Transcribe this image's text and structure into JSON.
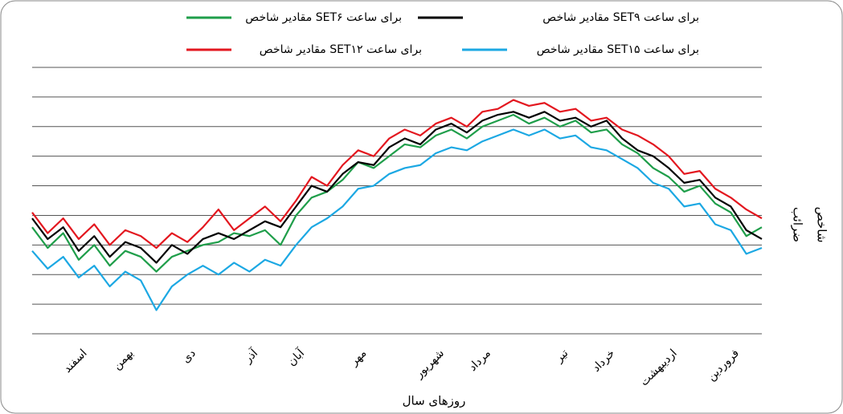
{
  "chart_data": {
    "type": "line",
    "x_label": "روزهای سال",
    "y_label": [
      "ضرائب",
      "شاخص"
    ],
    "categories": [
      null,
      null,
      null,
      "اسفند",
      null,
      null,
      "بهمن",
      null,
      null,
      null,
      "دی",
      null,
      null,
      null,
      "آذر",
      null,
      null,
      "آبان",
      null,
      null,
      null,
      "مهر",
      null,
      null,
      null,
      null,
      "شهریور",
      null,
      null,
      "مرداد",
      null,
      null,
      null,
      null,
      "تیر",
      null,
      null,
      "خرداد",
      null,
      null,
      null,
      "اردیبهشت",
      null,
      null,
      null,
      "فروردین",
      null,
      null
    ],
    "series": [
      {
        "name": "مقادیر شاخص SETبرای ساعت ۶",
        "color": "#1f9e4a",
        "values": [
          3.6,
          2.9,
          3.4,
          2.5,
          3.0,
          2.3,
          2.8,
          2.6,
          2.1,
          2.6,
          2.8,
          3.0,
          3.1,
          3.4,
          3.3,
          3.5,
          3.0,
          4.0,
          4.6,
          4.8,
          5.2,
          5.8,
          5.6,
          6.0,
          6.4,
          6.3,
          6.7,
          6.9,
          6.6,
          7.0,
          7.2,
          7.4,
          7.1,
          7.3,
          7.0,
          7.2,
          6.8,
          6.9,
          6.4,
          6.1,
          5.6,
          5.3,
          4.8,
          5.0,
          4.4,
          4.1,
          3.3,
          3.6
        ]
      },
      {
        "name": "مقادیر شاخص SETبرای ساعت ۹",
        "color": "#000000",
        "values": [
          3.9,
          3.2,
          3.6,
          2.8,
          3.3,
          2.6,
          3.1,
          2.9,
          2.4,
          3.0,
          2.7,
          3.2,
          3.4,
          3.2,
          3.5,
          3.8,
          3.6,
          4.3,
          5.0,
          4.8,
          5.4,
          5.8,
          5.7,
          6.3,
          6.6,
          6.4,
          6.9,
          7.1,
          6.8,
          7.2,
          7.4,
          7.5,
          7.3,
          7.5,
          7.2,
          7.3,
          7.0,
          7.2,
          6.6,
          6.2,
          6.0,
          5.6,
          5.1,
          5.2,
          4.6,
          4.3,
          3.5,
          3.2
        ]
      },
      {
        "name": "مقادیر شاخص SETبرای ساعت ۱۲",
        "color": "#e3171f",
        "values": [
          4.1,
          3.4,
          3.9,
          3.2,
          3.7,
          3.0,
          3.5,
          3.3,
          2.9,
          3.4,
          3.1,
          3.6,
          4.2,
          3.5,
          3.9,
          4.3,
          3.8,
          4.5,
          5.3,
          5.0,
          5.7,
          6.2,
          6.0,
          6.6,
          6.9,
          6.7,
          7.1,
          7.3,
          7.0,
          7.5,
          7.6,
          7.9,
          7.7,
          7.8,
          7.5,
          7.6,
          7.2,
          7.3,
          6.9,
          6.7,
          6.4,
          6.0,
          5.4,
          5.5,
          4.9,
          4.6,
          4.2,
          3.9
        ]
      },
      {
        "name": "مقادیر شاخص SETبرای ساعت ۱۵",
        "color": "#1ca8e3",
        "values": [
          2.8,
          2.2,
          2.6,
          1.9,
          2.3,
          1.6,
          2.1,
          1.8,
          0.8,
          1.6,
          2.0,
          2.3,
          2.0,
          2.4,
          2.1,
          2.5,
          2.3,
          3.0,
          3.6,
          3.9,
          4.3,
          4.9,
          5.0,
          5.4,
          5.6,
          5.7,
          6.1,
          6.3,
          6.2,
          6.5,
          6.7,
          6.9,
          6.7,
          6.9,
          6.6,
          6.7,
          6.3,
          6.2,
          5.9,
          5.6,
          5.1,
          4.9,
          4.3,
          4.4,
          3.7,
          3.5,
          2.7,
          2.9
        ]
      }
    ],
    "ylim": [
      0,
      9
    ],
    "yticks": [
      0,
      1,
      2,
      3,
      4,
      5,
      6,
      7,
      8,
      9
    ],
    "grid": true
  }
}
